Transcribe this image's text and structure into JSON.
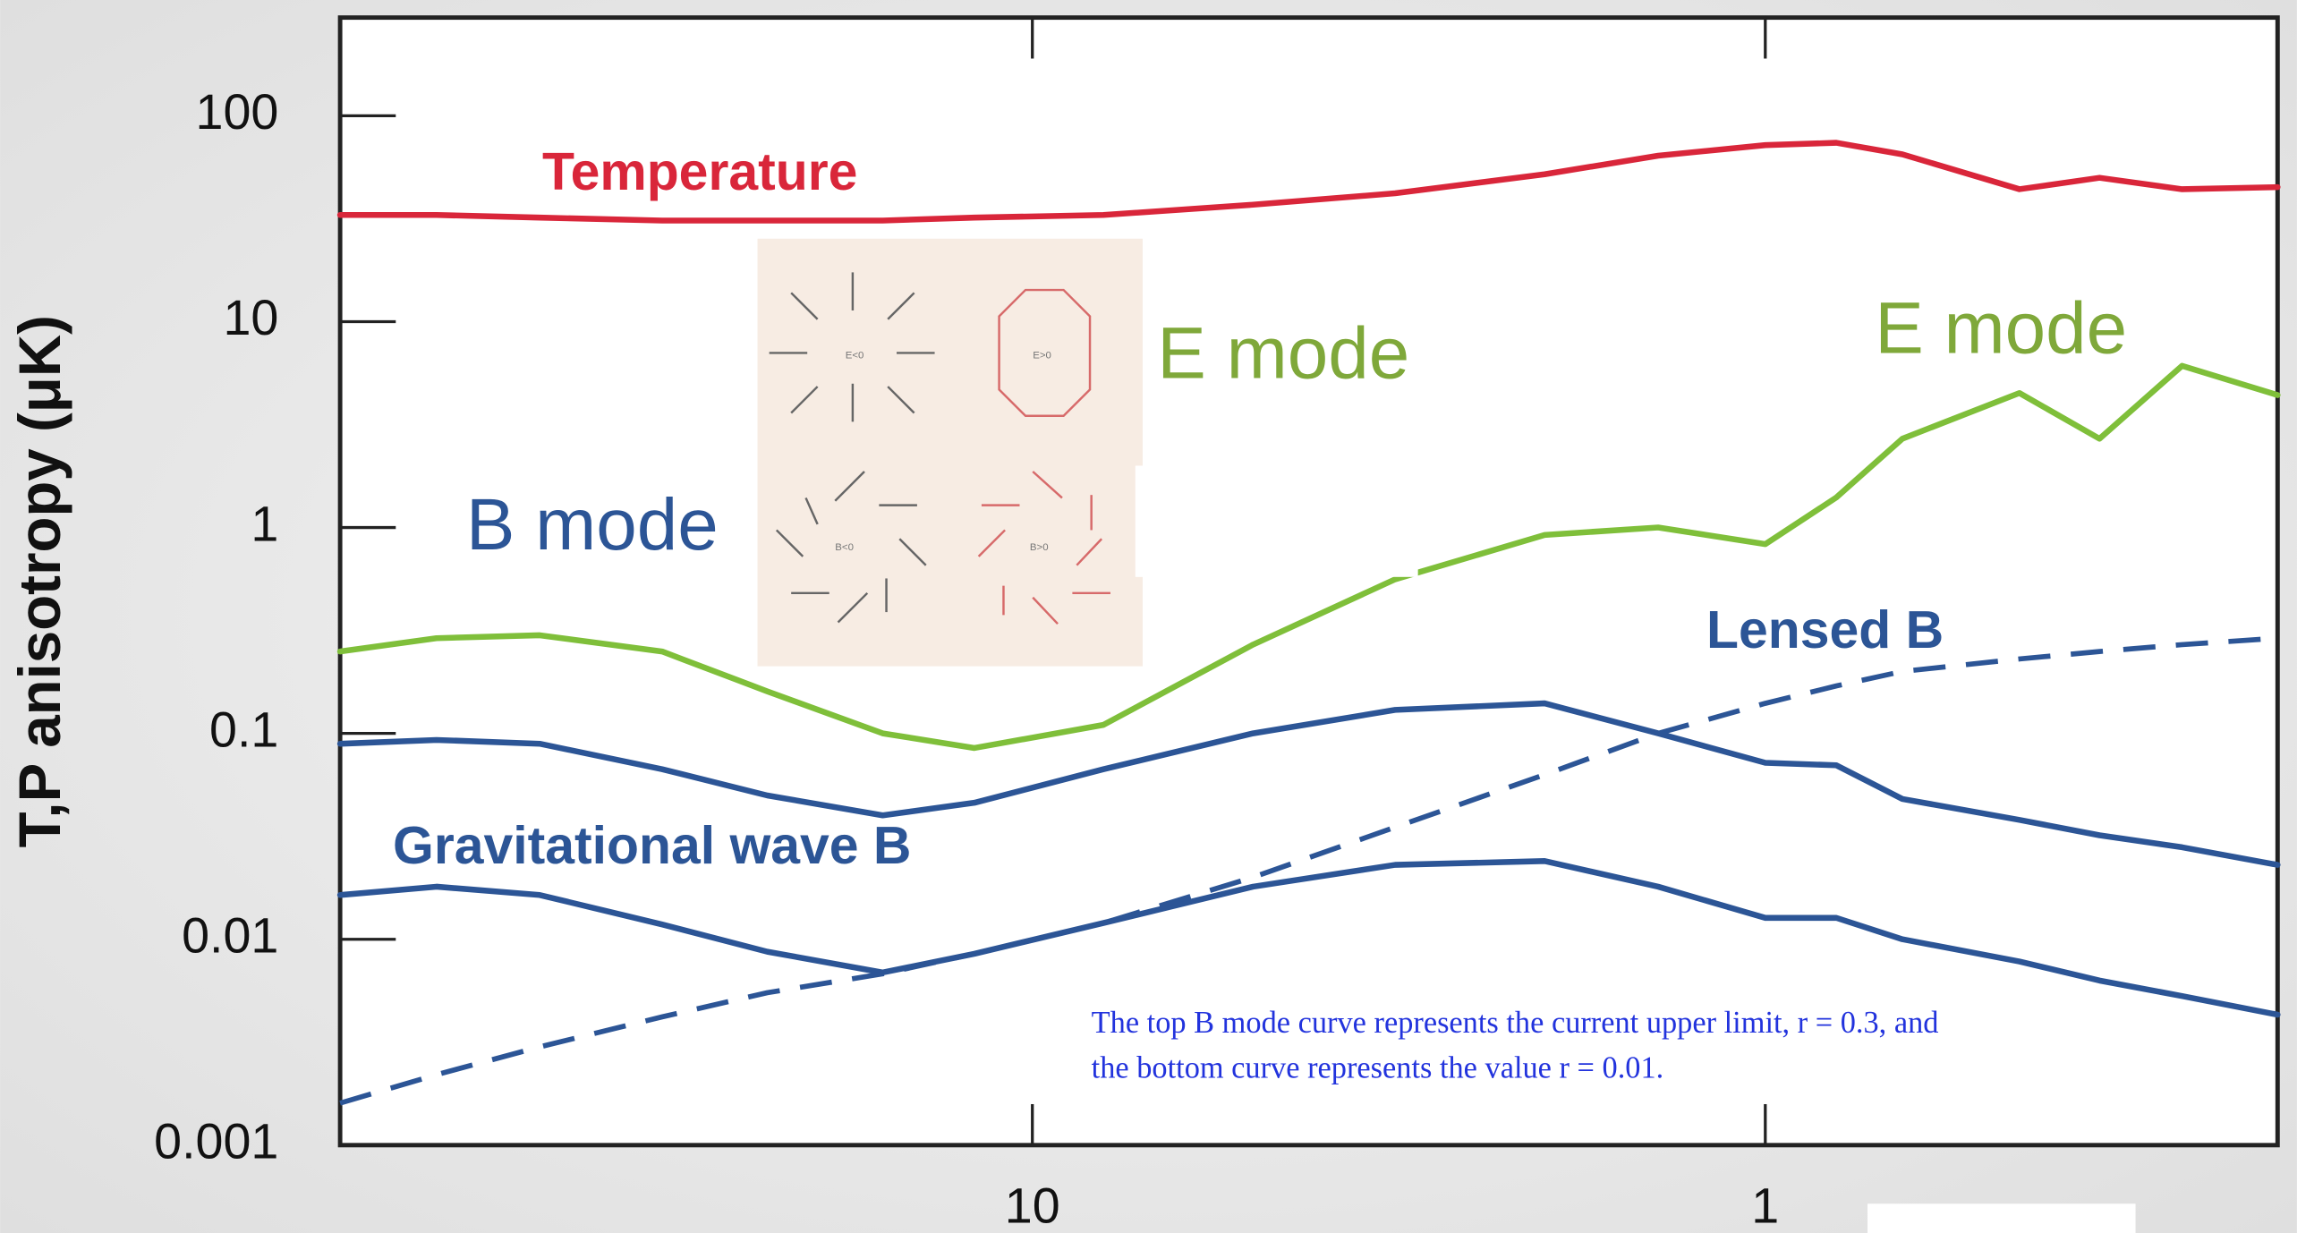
{
  "chart_data": {
    "type": "line",
    "ylabel": "T,P anisotropy (μK)",
    "x": [
      88,
      65,
      47,
      32,
      23,
      16,
      12,
      8,
      5,
      3.2,
      2,
      1.4,
      1,
      0.8,
      0.65,
      0.45,
      0.35,
      0.27,
      0.2
    ],
    "xlim": [
      88,
      0.2
    ],
    "xticks": [
      10,
      1
    ],
    "xscale": "log",
    "ylim": [
      0.001,
      300
    ],
    "yticks": [
      100,
      10,
      1,
      0.1,
      0.01,
      0.001
    ],
    "yscale": "log",
    "series": [
      {
        "color": "#d9263a",
        "dash": false,
        "values": [
          33,
          33,
          32,
          31,
          31,
          31,
          32,
          33,
          37,
          42,
          52,
          64,
          72,
          74,
          65,
          44,
          50,
          44,
          45
        ]
      },
      {
        "color": "#7fbf3a",
        "dash": false,
        "values": [
          0.25,
          0.29,
          0.3,
          0.25,
          0.16,
          0.1,
          0.085,
          0.11,
          0.27,
          0.56,
          0.92,
          1.0,
          0.83,
          1.4,
          2.7,
          4.5,
          2.7,
          6.1,
          4.4
        ]
      },
      {
        "color": "#2c5596",
        "dash": false,
        "values": [
          0.089,
          0.093,
          0.089,
          0.067,
          0.05,
          0.04,
          0.046,
          0.067,
          0.1,
          0.13,
          0.14,
          0.1,
          0.072,
          0.07,
          0.048,
          0.038,
          0.032,
          0.028,
          0.023
        ]
      },
      {
        "color": "#2c5596",
        "dash": false,
        "values": [
          0.0164,
          0.018,
          0.0164,
          0.0118,
          0.0087,
          0.0069,
          0.0085,
          0.012,
          0.018,
          0.023,
          0.024,
          0.018,
          0.0127,
          0.0127,
          0.01,
          0.0078,
          0.0063,
          0.0053,
          0.0043
        ]
      },
      {
        "color": "#2c5596",
        "dash": true,
        "values": [
          0.0016,
          0.0022,
          0.003,
          0.0042,
          0.0055,
          0.0068,
          0.0085,
          0.012,
          0.02,
          0.035,
          0.063,
          0.1,
          0.14,
          0.17,
          0.2,
          0.23,
          0.25,
          0.27,
          0.29
        ]
      }
    ],
    "annotations": [
      {
        "text": "Temperature",
        "color": "#d9263a"
      },
      {
        "text": "E mode",
        "color": "#7fa83a"
      },
      {
        "text": "E mode",
        "color": "#7fa83a"
      },
      {
        "text": "B mode",
        "color": "#2c5596"
      },
      {
        "text": "Lensed B",
        "color": "#2c5596"
      },
      {
        "text": "Gravitational wave B",
        "color": "#2c5596"
      }
    ],
    "note": [
      "The top B mode curve represents the current upper limit, r = 0.3, and",
      "the bottom curve represents the value r = 0.01."
    ],
    "inset_labels": [
      "E<0",
      "E>0",
      "B<0",
      "B>0"
    ]
  }
}
